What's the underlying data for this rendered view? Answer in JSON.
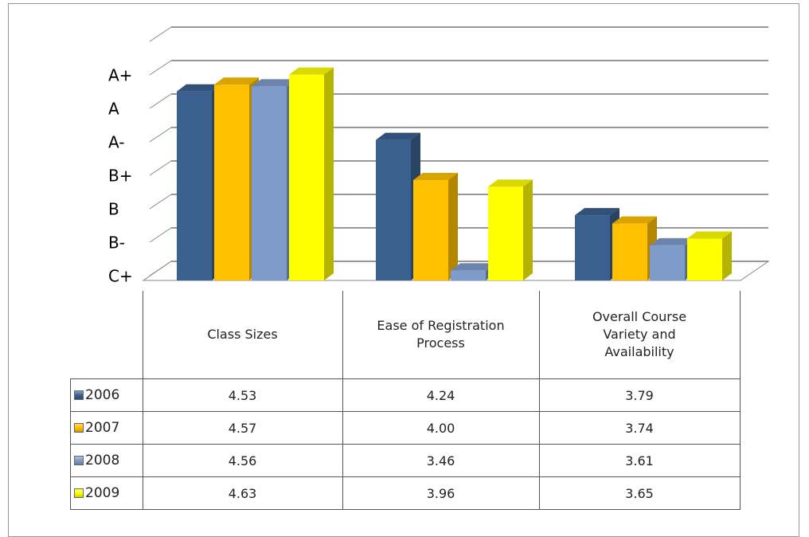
{
  "chart_data": {
    "type": "bar3d",
    "categories": [
      "Class Sizes",
      "Ease of Registration Process",
      "Overall Course Variety and Availability"
    ],
    "series": [
      {
        "name": "2006",
        "color": "#3b5f8e",
        "values": [
          4.53,
          4.24,
          3.79
        ],
        "value_labels": [
          "4.53",
          "4.24",
          "3.79"
        ]
      },
      {
        "name": "2007",
        "color": "#ffc000",
        "values": [
          4.57,
          4.0,
          3.74
        ],
        "value_labels": [
          "4.57",
          "4.00",
          "3.74"
        ]
      },
      {
        "name": "2008",
        "color": "#7f9bca",
        "values": [
          4.56,
          3.46,
          3.61
        ],
        "value_labels": [
          "4.56",
          "3.46",
          "3.61"
        ]
      },
      {
        "name": "2009",
        "color": "#ffff00",
        "values": [
          4.63,
          3.96,
          3.65
        ],
        "value_labels": [
          "4.63",
          "3.96",
          "3.65"
        ]
      }
    ],
    "ylim": [
      3.4,
      4.8
    ],
    "yticks": [
      {
        "value": 3.4,
        "label": "C+"
      },
      {
        "value": 3.6,
        "label": "B-"
      },
      {
        "value": 3.8,
        "label": "B"
      },
      {
        "value": 4.0,
        "label": "B+"
      },
      {
        "value": 4.2,
        "label": "A-"
      },
      {
        "value": 4.4,
        "label": "A"
      },
      {
        "value": 4.6,
        "label": "A+"
      }
    ],
    "grid": true
  }
}
